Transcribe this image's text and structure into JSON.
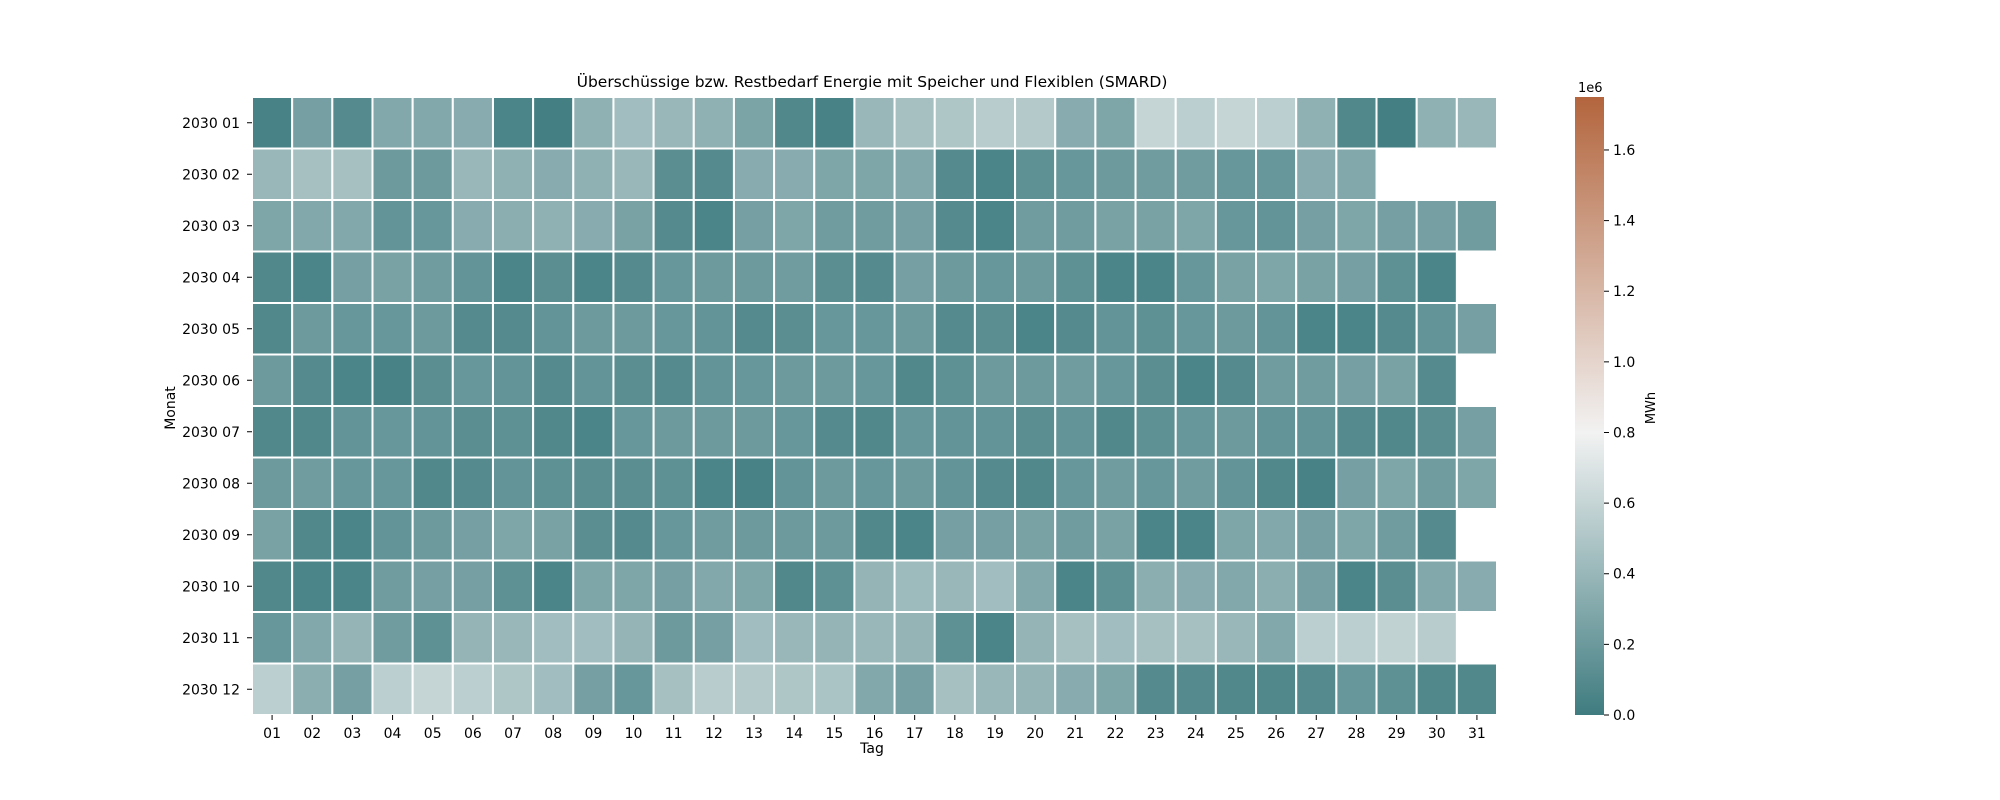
{
  "chart_data": {
    "type": "heatmap",
    "title": "Überschüssige bzw. Restbedarf Energie mit Speicher und Flexiblen (SMARD)",
    "xlabel": "Tag",
    "ylabel": "Monat",
    "x_categories": [
      "01",
      "02",
      "03",
      "04",
      "05",
      "06",
      "07",
      "08",
      "09",
      "10",
      "11",
      "12",
      "13",
      "14",
      "15",
      "16",
      "17",
      "18",
      "19",
      "20",
      "21",
      "22",
      "23",
      "24",
      "25",
      "26",
      "27",
      "28",
      "29",
      "30",
      "31"
    ],
    "y_categories": [
      "2030 01",
      "2030 02",
      "2030 03",
      "2030 04",
      "2030 05",
      "2030 06",
      "2030 07",
      "2030 08",
      "2030 09",
      "2030 10",
      "2030 11",
      "2030 12"
    ],
    "colorbar": {
      "label": "MWh",
      "exponent_label": "1e6",
      "min": 0,
      "max": 1.75,
      "ticks": [
        0.0,
        0.2,
        0.4,
        0.6,
        0.8,
        1.0,
        1.2,
        1.4,
        1.6
      ],
      "tick_labels": [
        "0.0",
        "0.2",
        "0.4",
        "0.6",
        "0.8",
        "1.0",
        "1.2",
        "1.4",
        "1.6"
      ],
      "colormap": [
        "#3f7c80",
        "#f2f2f2",
        "#b3653d"
      ]
    },
    "grid_color": "#ffffff",
    "values": [
      [
        0.04,
        0.24,
        0.1,
        0.3,
        0.3,
        0.32,
        0.06,
        0.02,
        0.36,
        0.44,
        0.4,
        0.36,
        0.27,
        0.08,
        0.04,
        0.4,
        0.46,
        0.5,
        0.54,
        0.52,
        0.32,
        0.28,
        0.6,
        0.56,
        0.6,
        0.56,
        0.36,
        0.08,
        0.02,
        0.36,
        0.4
      ],
      [
        0.4,
        0.46,
        0.46,
        0.2,
        0.2,
        0.4,
        0.36,
        0.32,
        0.36,
        0.4,
        0.12,
        0.1,
        0.32,
        0.32,
        0.28,
        0.28,
        0.3,
        0.1,
        0.06,
        0.14,
        0.18,
        0.2,
        0.22,
        0.22,
        0.18,
        0.18,
        0.32,
        0.3,
        null,
        null,
        null
      ],
      [
        0.28,
        0.3,
        0.3,
        0.16,
        0.18,
        0.32,
        0.34,
        0.36,
        0.32,
        0.26,
        0.1,
        0.06,
        0.24,
        0.28,
        0.22,
        0.22,
        0.24,
        0.1,
        0.06,
        0.22,
        0.22,
        0.26,
        0.26,
        0.28,
        0.18,
        0.16,
        0.24,
        0.28,
        0.24,
        0.24,
        0.22
      ],
      [
        0.08,
        0.06,
        0.24,
        0.26,
        0.22,
        0.16,
        0.06,
        0.12,
        0.06,
        0.1,
        0.18,
        0.2,
        0.2,
        0.22,
        0.12,
        0.1,
        0.24,
        0.2,
        0.18,
        0.2,
        0.14,
        0.06,
        0.06,
        0.18,
        0.26,
        0.28,
        0.26,
        0.24,
        0.14,
        0.06,
        null
      ],
      [
        0.08,
        0.2,
        0.18,
        0.18,
        0.2,
        0.1,
        0.1,
        0.16,
        0.2,
        0.2,
        0.18,
        0.16,
        0.1,
        0.12,
        0.18,
        0.18,
        0.2,
        0.1,
        0.12,
        0.06,
        0.1,
        0.16,
        0.14,
        0.18,
        0.2,
        0.16,
        0.06,
        0.06,
        0.1,
        0.16,
        0.24
      ],
      [
        0.2,
        0.1,
        0.06,
        0.04,
        0.12,
        0.18,
        0.16,
        0.1,
        0.16,
        0.12,
        0.1,
        0.16,
        0.18,
        0.2,
        0.2,
        0.18,
        0.08,
        0.14,
        0.2,
        0.2,
        0.22,
        0.18,
        0.12,
        0.06,
        0.1,
        0.22,
        0.22,
        0.24,
        0.26,
        0.1,
        null
      ],
      [
        0.08,
        0.08,
        0.16,
        0.18,
        0.16,
        0.12,
        0.14,
        0.08,
        0.06,
        0.18,
        0.2,
        0.2,
        0.2,
        0.18,
        0.1,
        0.08,
        0.18,
        0.16,
        0.16,
        0.12,
        0.16,
        0.08,
        0.14,
        0.18,
        0.2,
        0.16,
        0.16,
        0.1,
        0.08,
        0.12,
        0.24
      ],
      [
        0.2,
        0.22,
        0.18,
        0.18,
        0.08,
        0.1,
        0.16,
        0.14,
        0.12,
        0.12,
        0.14,
        0.06,
        0.04,
        0.16,
        0.2,
        0.18,
        0.2,
        0.16,
        0.1,
        0.08,
        0.18,
        0.22,
        0.18,
        0.22,
        0.16,
        0.08,
        0.04,
        0.24,
        0.28,
        0.22,
        0.28
      ],
      [
        0.26,
        0.08,
        0.06,
        0.16,
        0.2,
        0.24,
        0.28,
        0.26,
        0.12,
        0.1,
        0.18,
        0.22,
        0.2,
        0.2,
        0.2,
        0.08,
        0.06,
        0.24,
        0.24,
        0.26,
        0.22,
        0.26,
        0.06,
        0.06,
        0.28,
        0.3,
        0.24,
        0.28,
        0.22,
        0.1,
        null
      ],
      [
        0.08,
        0.06,
        0.06,
        0.22,
        0.24,
        0.24,
        0.14,
        0.06,
        0.28,
        0.28,
        0.24,
        0.3,
        0.28,
        0.08,
        0.14,
        0.38,
        0.42,
        0.4,
        0.44,
        0.3,
        0.06,
        0.14,
        0.34,
        0.32,
        0.3,
        0.34,
        0.24,
        0.06,
        0.12,
        0.3,
        0.32
      ],
      [
        0.18,
        0.3,
        0.38,
        0.22,
        0.14,
        0.38,
        0.4,
        0.44,
        0.44,
        0.38,
        0.2,
        0.24,
        0.44,
        0.4,
        0.38,
        0.4,
        0.38,
        0.14,
        0.06,
        0.38,
        0.46,
        0.44,
        0.46,
        0.46,
        0.4,
        0.3,
        0.56,
        0.56,
        0.58,
        0.54,
        null
      ],
      [
        0.56,
        0.34,
        0.24,
        0.56,
        0.6,
        0.56,
        0.5,
        0.44,
        0.24,
        0.18,
        0.46,
        0.54,
        0.52,
        0.5,
        0.48,
        0.3,
        0.24,
        0.46,
        0.4,
        0.38,
        0.32,
        0.28,
        0.1,
        0.1,
        0.08,
        0.08,
        0.1,
        0.18,
        0.14,
        0.08,
        0.08
      ]
    ]
  }
}
